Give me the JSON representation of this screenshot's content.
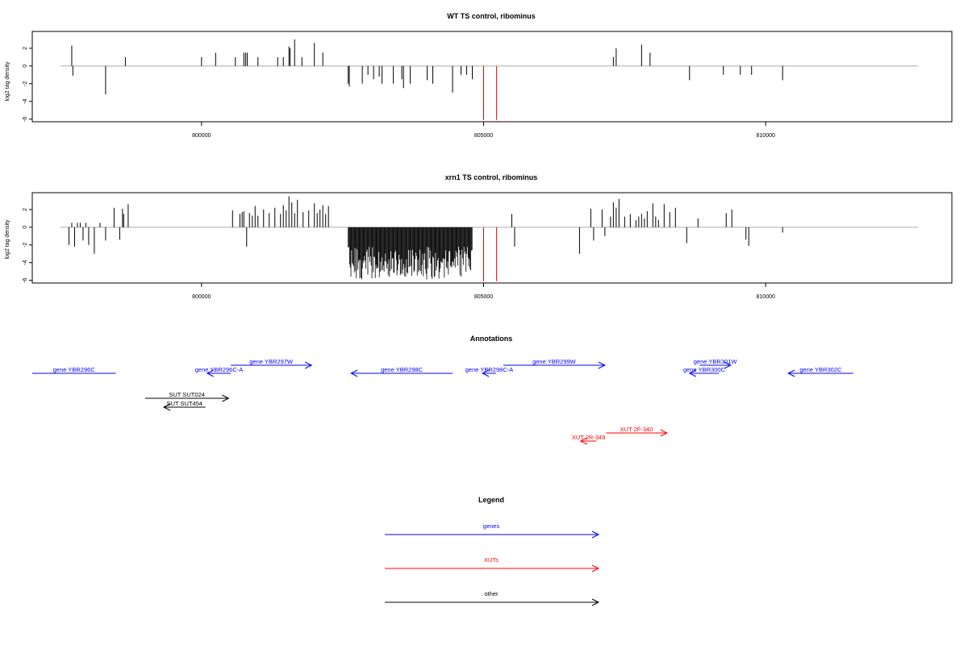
{
  "chart_data": [
    {
      "type": "bar",
      "title": "WT TS control, ribominus",
      "ylabel": "log2 tag density",
      "xlim": [
        797000,
        813300
      ],
      "ylim": [
        -6.3,
        3.9
      ],
      "x_ticks": [
        800000,
        805000,
        810000
      ],
      "x_tick_labels": [
        "800000",
        "805000",
        "810000"
      ],
      "y_ticks": [
        -6,
        -4,
        -2,
        0,
        2
      ],
      "y_tick_labels": [
        "-6",
        "-4",
        "-2",
        "0",
        "2"
      ],
      "baseline": 0,
      "series": [
        {
          "color": "#000000",
          "x": [
            797700,
            797720,
            798300,
            798650,
            800000,
            800250,
            800600,
            800750,
            800780,
            800810,
            801000,
            801350,
            801450,
            801550,
            801570,
            801650,
            801780,
            802000,
            802150,
            802600,
            802620,
            802850,
            802950,
            803050,
            803150,
            803200,
            803400,
            803550,
            803580,
            803700,
            804000,
            804100,
            804450,
            804600,
            804700,
            804800,
            807300,
            807350,
            807800,
            807950,
            808650,
            809250,
            809550,
            809750,
            810300
          ],
          "values": [
            2.3,
            -1.1,
            -3.2,
            1.0,
            1.0,
            1.5,
            1.0,
            1.5,
            1.5,
            1.5,
            1.0,
            1.0,
            1.0,
            2.2,
            2.0,
            3.0,
            1.0,
            2.6,
            1.5,
            -2.0,
            -2.3,
            -2.0,
            -1.0,
            -1.5,
            -1.2,
            -2.0,
            -2.0,
            -1.5,
            -2.5,
            -2.0,
            -1.6,
            -2.0,
            -3.0,
            -1.0,
            -1.0,
            -1.5,
            1.0,
            2.0,
            2.4,
            1.5,
            -1.6,
            -1.0,
            -1.0,
            -1.0,
            -1.6
          ]
        },
        {
          "color": "#ff0000",
          "x": [
            805000,
            805230
          ],
          "values": [
            -6.1,
            -6.1
          ]
        }
      ]
    },
    {
      "type": "bar",
      "title": "xrn1 TS control, ribominus",
      "ylabel": "log2 tag density",
      "xlim": [
        797000,
        813300
      ],
      "ylim": [
        -6.3,
        3.9
      ],
      "x_ticks": [
        800000,
        805000,
        810000
      ],
      "x_tick_labels": [
        "800000",
        "805000",
        "810000"
      ],
      "y_ticks": [
        -6,
        -4,
        -2,
        0,
        2
      ],
      "y_tick_labels": [
        "-6",
        "-4",
        "-2",
        "0",
        "2"
      ],
      "baseline": 0,
      "series": [
        {
          "color": "#000000",
          "x": [
            797650,
            797700,
            797750,
            797800,
            797850,
            797900,
            797950,
            798000,
            798100,
            798200,
            798300,
            798450,
            798550,
            798600,
            798620,
            798700,
            800550,
            800680,
            800720,
            800750,
            800800,
            800850,
            800900,
            800950,
            801000,
            801100,
            801200,
            801300,
            801400,
            801450,
            801500,
            801550,
            801600,
            801650,
            801700,
            801800,
            801900,
            802000,
            802050,
            802100,
            802150,
            802200,
            802250,
            805500,
            805550,
            806700,
            806900,
            806950,
            807100,
            807150,
            807250,
            807300,
            807350,
            807400,
            807500,
            807600,
            807700,
            807750,
            807800,
            807850,
            807900,
            808000,
            808050,
            808100,
            808200,
            808300,
            808400,
            808600,
            808800,
            809300,
            809400,
            809650,
            809700,
            810300
          ],
          "values": [
            -2.0,
            0.5,
            -2.2,
            0.5,
            0.5,
            -1.5,
            0.5,
            -2.0,
            -3.0,
            0.5,
            -1.5,
            2.2,
            -1.4,
            2.1,
            1.5,
            2.6,
            1.9,
            1.5,
            1.7,
            1.8,
            -2.2,
            1.6,
            1.3,
            2.4,
            1.3,
            2.0,
            1.6,
            2.2,
            1.5,
            2.5,
            1.9,
            3.5,
            2.8,
            1.6,
            3.1,
            1.7,
            1.9,
            2.7,
            1.6,
            2.0,
            2.5,
            1.5,
            2.4,
            1.5,
            -2.2,
            -3.0,
            2.1,
            -1.5,
            2.0,
            -1.0,
            1.2,
            2.8,
            2.2,
            3.2,
            1.2,
            1.5,
            0.8,
            1.2,
            1.5,
            1.0,
            1.8,
            2.7,
            1.2,
            0.8,
            2.6,
            1.7,
            2.2,
            -1.8,
            1.0,
            1.6,
            2.0,
            -1.4,
            -2.1,
            -0.6
          ]
        },
        {
          "color": "#ff0000",
          "x": [
            805000,
            805230
          ],
          "values": [
            -6.1,
            -6.1
          ]
        }
      ]
    }
  ],
  "annotations": {
    "title": "Annotations",
    "axis_min": 797000,
    "axis_max": 813300,
    "items": [
      {
        "label": "gene YBR296C",
        "color": "#0000ff",
        "start": 797000,
        "end": 798480,
        "dir": "none",
        "row": 0
      },
      {
        "label": "gene YBR296C-A",
        "color": "#0000ff",
        "start": 800100,
        "end": 800520,
        "dir": "left",
        "row": 0
      },
      {
        "label": "gene YBR297W",
        "color": "#0000ff",
        "start": 800520,
        "end": 801950,
        "dir": "right",
        "row": 1
      },
      {
        "label": "gene YBR298C",
        "color": "#0000ff",
        "start": 802650,
        "end": 804450,
        "dir": "left",
        "row": 0
      },
      {
        "label": "gene YBR298C-A",
        "color": "#0000ff",
        "start": 804980,
        "end": 805220,
        "dir": "left",
        "row": 0
      },
      {
        "label": "gene YBR299W",
        "color": "#0000ff",
        "start": 805350,
        "end": 807150,
        "dir": "right",
        "row": 1
      },
      {
        "label": "gene YBR300C",
        "color": "#0000ff",
        "start": 808650,
        "end": 809170,
        "dir": "left",
        "row": 0
      },
      {
        "label": "gene YBR301W",
        "color": "#0000ff",
        "start": 808830,
        "end": 809380,
        "dir": "right",
        "row": 1
      },
      {
        "label": "gene YBR302C",
        "color": "#0000ff",
        "start": 810400,
        "end": 811550,
        "dir": "left",
        "row": 0
      },
      {
        "label": "SUT SUT024",
        "color": "#000000",
        "start": 799000,
        "end": 800480,
        "dir": "right",
        "row": 2
      },
      {
        "label": "SUT SUT454",
        "color": "#000000",
        "start": 799330,
        "end": 800070,
        "dir": "left",
        "row": 3
      },
      {
        "label": "XUT 2F-340",
        "color": "#ff0000",
        "start": 807170,
        "end": 808250,
        "dir": "right",
        "row": 4
      },
      {
        "label": "XUT 2R-349",
        "color": "#ff0000",
        "start": 806720,
        "end": 807000,
        "dir": "left",
        "row": 5
      }
    ]
  },
  "legend": {
    "title": "Legend",
    "items": [
      {
        "label": "genes",
        "color": "#0000ff"
      },
      {
        "label": "XUTs",
        "color": "#ff0000"
      },
      {
        "label": "other",
        "color": "#000000"
      }
    ]
  }
}
